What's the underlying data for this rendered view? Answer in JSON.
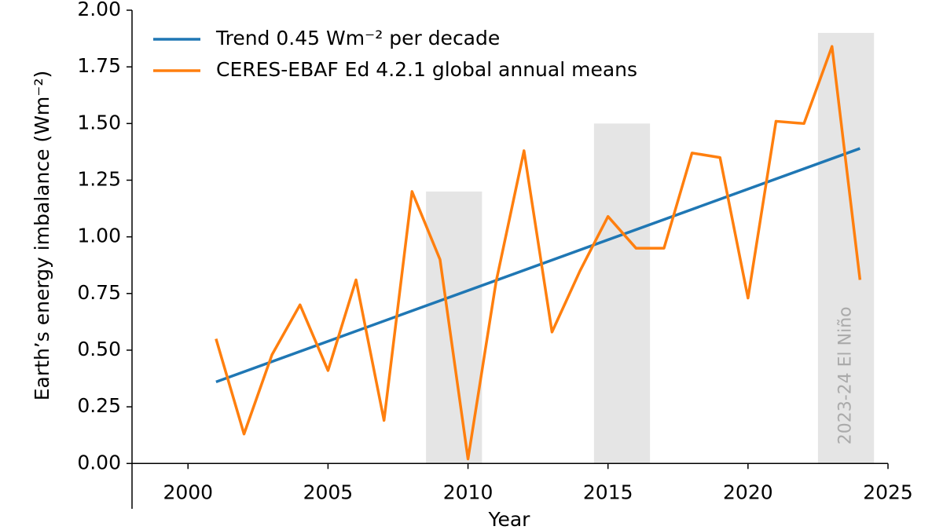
{
  "chart_data": {
    "type": "line",
    "x_label": "Year",
    "y_label": "Earth’s energy imbalance (Wm⁻²)",
    "xlim": [
      1998,
      2025
    ],
    "ylim": [
      -0.2,
      2.0
    ],
    "xticks": [
      2000,
      2005,
      2010,
      2015,
      2020,
      2025
    ],
    "yticks": [
      {
        "value": 0,
        "label": "0.00"
      },
      {
        "value": 0.25,
        "label": "0.25"
      },
      {
        "value": 0.5,
        "label": "0.50"
      },
      {
        "value": 0.75,
        "label": "0.75"
      },
      {
        "value": 1,
        "label": "1.00"
      },
      {
        "value": 1.25,
        "label": "1.25"
      },
      {
        "value": 1.5,
        "label": "1.50"
      },
      {
        "value": 1.75,
        "label": "1.75"
      },
      {
        "value": 2,
        "label": "2.00"
      }
    ],
    "shaded": [
      {
        "x": [
          2008.5,
          2010.5
        ],
        "top": 1.2
      },
      {
        "x": [
          2014.5,
          2016.5
        ],
        "top": 1.5
      },
      {
        "x": [
          2022.5,
          2024.5
        ],
        "top": 1.9
      }
    ],
    "annotation": "2023-24 El Niño",
    "legend": "upper left",
    "series": [
      {
        "name": "Trend 0.45 Wm⁻² per decade",
        "color": "#1f77b4",
        "x": [
          2001,
          2024
        ],
        "values": [
          0.36,
          1.39
        ]
      },
      {
        "name": "CERES-EBAF Ed 4.2.1 global annual means",
        "color": "#ff7f0e",
        "x": [
          2001,
          2002,
          2003,
          2004,
          2005,
          2006,
          2007,
          2008,
          2009,
          2010,
          2011,
          2012,
          2013,
          2014,
          2015,
          2016,
          2017,
          2018,
          2019,
          2020,
          2021,
          2022,
          2023,
          2024
        ],
        "values": [
          0.55,
          0.13,
          0.48,
          0.7,
          0.41,
          0.81,
          0.19,
          1.2,
          0.9,
          0.02,
          0.8,
          1.38,
          0.58,
          0.85,
          1.09,
          0.95,
          0.95,
          1.37,
          1.35,
          0.73,
          1.51,
          1.5,
          1.84,
          0.81
        ]
      }
    ]
  }
}
